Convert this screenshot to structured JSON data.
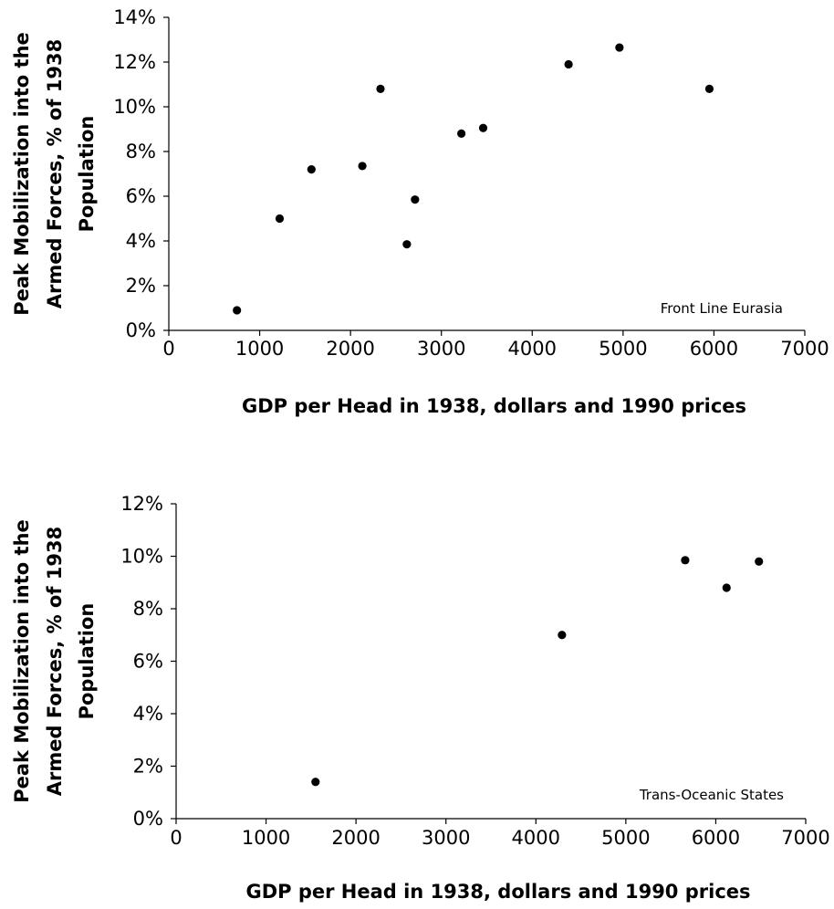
{
  "chart_data": [
    {
      "type": "scatter",
      "annotation": "Front Line Eurasia",
      "xlabel": "GDP per Head in 1938, dollars and 1990 prices",
      "ylabel_lines": [
        "Peak Mobilization into the",
        "Armed Forces, % of 1938",
        "Population"
      ],
      "xlim": [
        0,
        7000
      ],
      "ylim": [
        0,
        14
      ],
      "x_ticks": [
        0,
        1000,
        2000,
        3000,
        4000,
        5000,
        6000,
        7000
      ],
      "y_ticks": [
        0,
        2,
        4,
        6,
        8,
        10,
        12,
        14
      ],
      "y_tick_labels": [
        "0%",
        "2%",
        "4%",
        "6%",
        "8%",
        "10%",
        "12%",
        "14%"
      ],
      "series": [
        {
          "points": [
            {
              "x": 750,
              "y": 0.9
            },
            {
              "x": 1220,
              "y": 5.0
            },
            {
              "x": 1570,
              "y": 7.2
            },
            {
              "x": 2130,
              "y": 7.35
            },
            {
              "x": 2330,
              "y": 10.8
            },
            {
              "x": 2620,
              "y": 3.85
            },
            {
              "x": 2710,
              "y": 5.85
            },
            {
              "x": 3220,
              "y": 8.8
            },
            {
              "x": 3460,
              "y": 9.05
            },
            {
              "x": 4400,
              "y": 11.9
            },
            {
              "x": 4960,
              "y": 12.65
            },
            {
              "x": 5950,
              "y": 10.8
            }
          ]
        }
      ]
    },
    {
      "type": "scatter",
      "annotation": "Trans-Oceanic States",
      "xlabel": "GDP per Head in 1938, dollars and 1990 prices",
      "ylabel_lines": [
        "Peak Mobilization into the",
        "Armed Forces, % of 1938",
        "Population"
      ],
      "xlim": [
        0,
        7000
      ],
      "ylim": [
        0,
        12
      ],
      "x_ticks": [
        0,
        1000,
        2000,
        3000,
        4000,
        5000,
        6000,
        7000
      ],
      "y_ticks": [
        0,
        2,
        4,
        6,
        8,
        10,
        12
      ],
      "y_tick_labels": [
        "0%",
        "2%",
        "4%",
        "6%",
        "8%",
        "10%",
        "12%"
      ],
      "series": [
        {
          "points": [
            {
              "x": 1550,
              "y": 1.4
            },
            {
              "x": 4290,
              "y": 7.0
            },
            {
              "x": 5660,
              "y": 9.85
            },
            {
              "x": 6120,
              "y": 8.8
            },
            {
              "x": 6480,
              "y": 9.8
            }
          ]
        }
      ]
    }
  ]
}
